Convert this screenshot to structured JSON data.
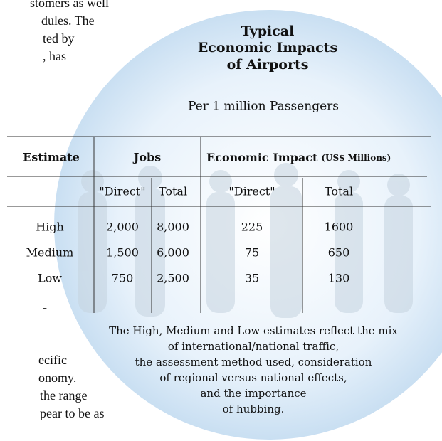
{
  "background_text": [
    "stomers as well",
    "dules. The",
    "ted by",
    ", has",
    "-",
    "ecific",
    "onomy.",
    "the range",
    "pear to be as"
  ],
  "header": {
    "title": [
      "Typical",
      "Economic Impacts",
      "of Airports"
    ],
    "subtitle": "Per 1 million Passengers"
  },
  "table": {
    "header": {
      "estimate": "Estimate",
      "jobs": "Jobs",
      "impact": "Economic Impact",
      "impact_unit": "(US$ Millions)"
    },
    "subheader": [
      "\"Direct\"",
      "Total",
      "\"Direct\"",
      "Total"
    ],
    "rows": [
      [
        "High",
        "2,000",
        "8,000",
        "225",
        "1600"
      ],
      [
        "Medium",
        "1,500",
        "6,000",
        "75",
        "650"
      ],
      [
        "Low",
        "750",
        "2,500",
        "35",
        "130"
      ]
    ]
  },
  "note": [
    "The High, Medium and Low estimates reflect the mix",
    "of international/national traffic,",
    "the assessment method used, consideration",
    "of regional versus national effects,",
    "and the importance",
    "of hubbing."
  ]
}
